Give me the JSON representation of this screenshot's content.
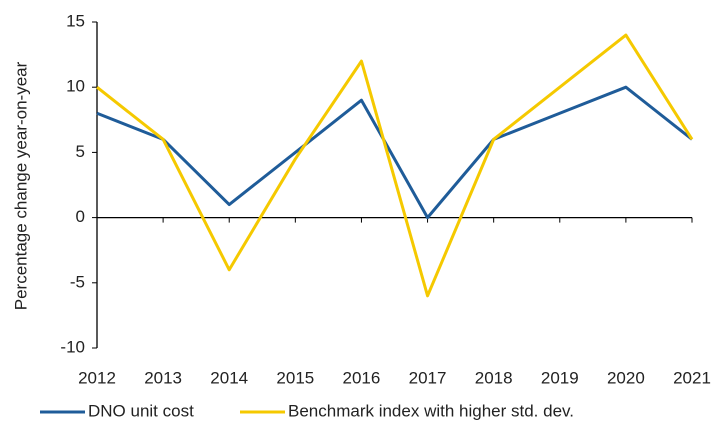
{
  "chart_data": {
    "type": "line",
    "y_label": "Percentage change year-on-year",
    "x": [
      2012,
      2013,
      2014,
      2015,
      2016,
      2017,
      2018,
      2019,
      2020,
      2021
    ],
    "series": [
      {
        "name": "DNO unit cost",
        "color": "#1f5c99",
        "values": [
          8,
          6,
          1,
          5,
          9,
          0,
          6,
          8,
          10,
          6
        ]
      },
      {
        "name": "Benchmark index with higher std. dev.",
        "color": "#f5c900",
        "values": [
          10,
          6,
          -4,
          4.5,
          12,
          -6,
          6,
          10,
          14,
          6
        ]
      }
    ],
    "xlim": [
      2012,
      2021
    ],
    "xticks": [
      2012,
      2013,
      2014,
      2015,
      2016,
      2017,
      2018,
      2019,
      2020,
      2021
    ],
    "ylim": [
      -10,
      15
    ],
    "yticks": [
      -10,
      -5,
      0,
      5,
      10,
      15
    ],
    "grid": false
  }
}
